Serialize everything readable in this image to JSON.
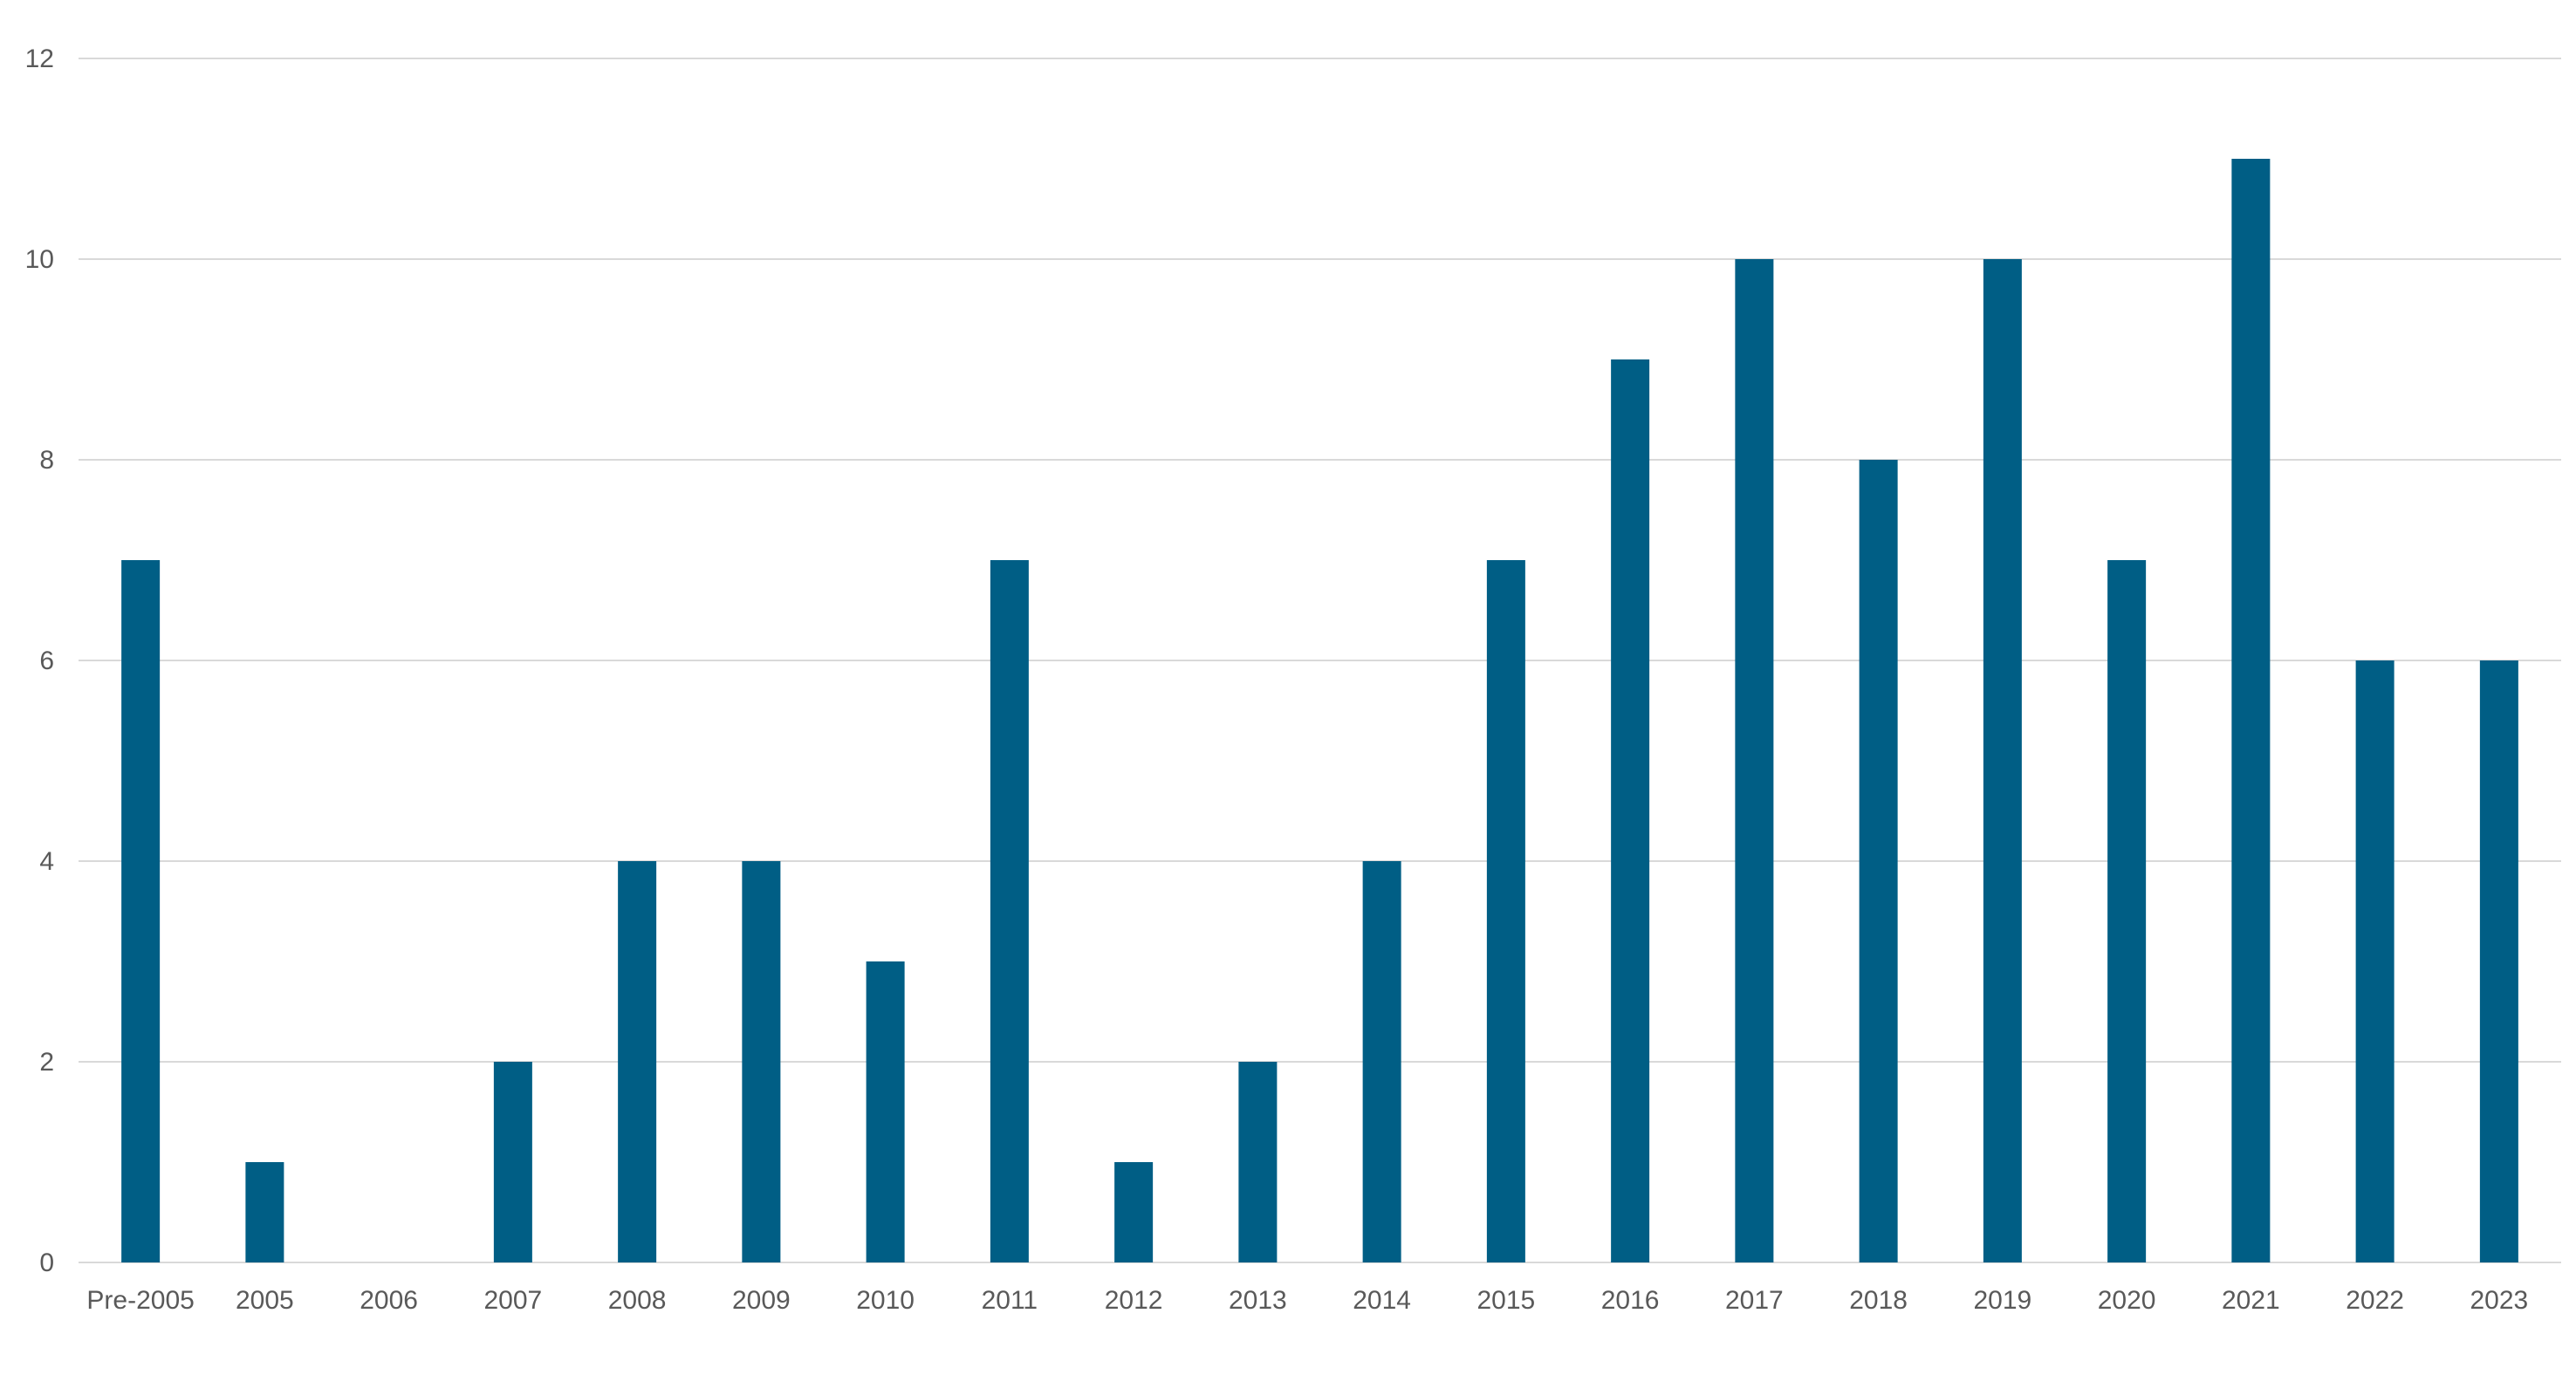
{
  "chart_data": {
    "type": "bar",
    "title": "",
    "xlabel": "",
    "ylabel": "",
    "categories": [
      "Pre-2005",
      "2005",
      "2006",
      "2007",
      "2008",
      "2009",
      "2010",
      "2011",
      "2012",
      "2013",
      "2014",
      "2015",
      "2016",
      "2017",
      "2018",
      "2019",
      "2020",
      "2021",
      "2022",
      "2023"
    ],
    "values": [
      7,
      1,
      0,
      2,
      4,
      4,
      3,
      7,
      1,
      2,
      4,
      7,
      9,
      10,
      8,
      10,
      7,
      11,
      6,
      6
    ],
    "ylim": [
      0,
      12
    ],
    "yticks": [
      0,
      2,
      4,
      6,
      8,
      10,
      12
    ],
    "grid": true,
    "legend": "none",
    "bar_color": "#005e85",
    "grid_color": "#d9d9d9",
    "text_color": "#595959"
  }
}
